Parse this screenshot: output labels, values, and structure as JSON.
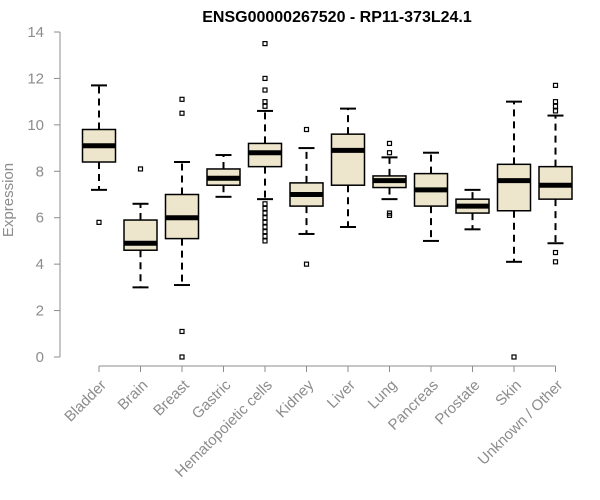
{
  "chart_data": {
    "type": "boxplot",
    "title": "ENSG00000267520 - RP11-373L24.1",
    "xlabel": "",
    "ylabel": "Expression",
    "ylim": [
      0,
      14
    ],
    "yticks": [
      0,
      2,
      4,
      6,
      8,
      10,
      12,
      14
    ],
    "grid": false,
    "categories": [
      "Bladder",
      "Brain",
      "Breast",
      "Gastric",
      "Hematopoietic cells",
      "Kidney",
      "Liver",
      "Lung",
      "Pancreas",
      "Prostate",
      "Skin",
      "Unknown / Other"
    ],
    "series": [
      {
        "boxes": [
          {
            "category": "Bladder",
            "whisker_low": 7.2,
            "q1": 8.4,
            "median": 9.1,
            "q3": 9.8,
            "whisker_high": 11.7,
            "outliers": [
              5.8
            ]
          },
          {
            "category": "Brain",
            "whisker_low": 3.0,
            "q1": 4.6,
            "median": 4.9,
            "q3": 5.9,
            "whisker_high": 6.6,
            "outliers": [
              8.1
            ]
          },
          {
            "category": "Breast",
            "whisker_low": 3.1,
            "q1": 5.1,
            "median": 6.0,
            "q3": 7.0,
            "whisker_high": 8.4,
            "outliers": [
              0.0,
              1.1,
              10.5,
              11.1
            ]
          },
          {
            "category": "Gastric",
            "whisker_low": 6.9,
            "q1": 7.4,
            "median": 7.7,
            "q3": 8.1,
            "whisker_high": 8.7,
            "outliers": []
          },
          {
            "category": "Hematopoietic cells",
            "whisker_low": 6.8,
            "q1": 8.2,
            "median": 8.8,
            "q3": 9.2,
            "whisker_high": 10.6,
            "outliers": [
              5.0,
              5.2,
              5.4,
              5.6,
              5.8,
              6.0,
              6.2,
              6.4,
              6.6,
              10.8,
              11.0,
              11.5,
              12.0,
              13.5
            ]
          },
          {
            "category": "Kidney",
            "whisker_low": 5.3,
            "q1": 6.5,
            "median": 7.0,
            "q3": 7.5,
            "whisker_high": 9.0,
            "outliers": [
              4.0,
              9.8
            ]
          },
          {
            "category": "Liver",
            "whisker_low": 5.6,
            "q1": 7.4,
            "median": 8.9,
            "q3": 9.6,
            "whisker_high": 10.7,
            "outliers": []
          },
          {
            "category": "Lung",
            "whisker_low": 6.8,
            "q1": 7.3,
            "median": 7.6,
            "q3": 7.8,
            "whisker_high": 8.6,
            "outliers": [
              6.1,
              6.2,
              8.8,
              9.2
            ]
          },
          {
            "category": "Pancreas",
            "whisker_low": 5.0,
            "q1": 6.5,
            "median": 7.2,
            "q3": 7.9,
            "whisker_high": 8.8,
            "outliers": []
          },
          {
            "category": "Prostate",
            "whisker_low": 5.5,
            "q1": 6.2,
            "median": 6.5,
            "q3": 6.8,
            "whisker_high": 7.2,
            "outliers": []
          },
          {
            "category": "Skin",
            "whisker_low": 4.1,
            "q1": 6.3,
            "median": 7.6,
            "q3": 8.3,
            "whisker_high": 11.0,
            "outliers": [
              0.0
            ]
          },
          {
            "category": "Unknown / Other",
            "whisker_low": 4.9,
            "q1": 6.8,
            "median": 7.4,
            "q3": 8.2,
            "whisker_high": 10.4,
            "outliers": [
              4.1,
              4.5,
              10.6,
              10.8,
              11.0,
              11.7
            ]
          }
        ]
      }
    ]
  },
  "colors": {
    "box_fill": "#ede6cc",
    "box_stroke": "#000000",
    "median": "#000000",
    "axis": "#8c8c8c",
    "tick_label": "#8c8c8c",
    "title": "#000000"
  }
}
